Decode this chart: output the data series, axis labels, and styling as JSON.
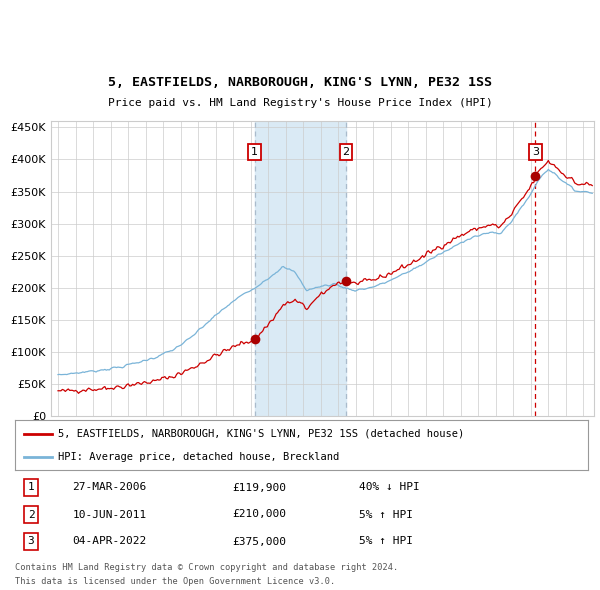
{
  "title": "5, EASTFIELDS, NARBOROUGH, KING'S LYNN, PE32 1SS",
  "subtitle": "Price paid vs. HM Land Registry's House Price Index (HPI)",
  "legend_line1": "5, EASTFIELDS, NARBOROUGH, KING'S LYNN, PE32 1SS (detached house)",
  "legend_line2": "HPI: Average price, detached house, Breckland",
  "footer1": "Contains HM Land Registry data © Crown copyright and database right 2024.",
  "footer2": "This data is licensed under the Open Government Licence v3.0.",
  "transactions": [
    {
      "num": 1,
      "date": "27-MAR-2006",
      "price": 119900,
      "pct": "40%",
      "dir": "↓",
      "year_x": 2006.23
    },
    {
      "num": 2,
      "date": "10-JUN-2011",
      "price": 210000,
      "pct": "5%",
      "dir": "↑",
      "year_x": 2011.44
    },
    {
      "num": 3,
      "date": "04-APR-2022",
      "price": 375000,
      "pct": "5%",
      "dir": "↑",
      "year_x": 2022.26
    }
  ],
  "hpi_color": "#7ab4d8",
  "price_color": "#cc0000",
  "marker_color": "#aa0000",
  "shading_color": "#daeaf5",
  "vline_color_12": "#aabbcc",
  "vline_color_3": "#cc0000",
  "bg_color": "#ffffff",
  "grid_color": "#cccccc",
  "ylim": [
    0,
    460000
  ],
  "xlim_start": 1994.6,
  "xlim_end": 2025.6
}
